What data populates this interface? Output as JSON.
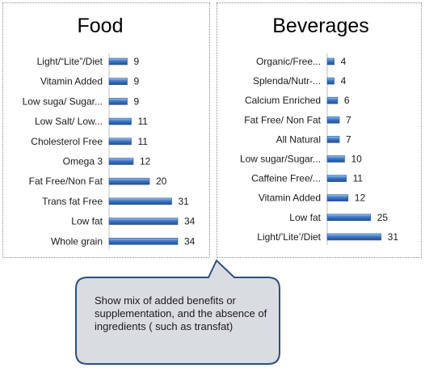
{
  "chart_data": [
    {
      "type": "bar",
      "orientation": "horizontal",
      "title": "Food",
      "categories": [
        "Light/“Lite”/Diet",
        "Vitamin Added",
        "Low suga/ Sugar...",
        "Low Salt/ Low...",
        "Cholesterol Free",
        "Omega 3",
        "Fat Free/Non Fat",
        "Trans fat Free",
        "Low fat",
        "Whole grain"
      ],
      "values": [
        9,
        9,
        9,
        11,
        11,
        12,
        20,
        31,
        34,
        34
      ],
      "xlim": [
        0,
        40
      ],
      "grid": false,
      "legend": "none",
      "bar_color": "#3f77c4"
    },
    {
      "type": "bar",
      "orientation": "horizontal",
      "title": "Beverages",
      "categories": [
        "Organic/Free...",
        "Splenda/Nutr-...",
        "Calcium Enriched",
        "Fat Free/ Non Fat",
        "All Natural",
        "Low sugar/Sugar...",
        "Caffeine Free/...",
        "Vitamin Added",
        "Low fat",
        "Light/’Lite’/Diet"
      ],
      "values": [
        4,
        4,
        6,
        7,
        7,
        10,
        11,
        12,
        25,
        31
      ],
      "xlim": [
        0,
        35
      ],
      "grid": false,
      "legend": "none",
      "bar_color": "#3f77c4"
    }
  ],
  "callout": {
    "text": "Show mix of added benefits or supplementation, and the absence of ingredients ( such as transfat)",
    "fill": "#d9dce1",
    "border": "#2f4f7f"
  }
}
